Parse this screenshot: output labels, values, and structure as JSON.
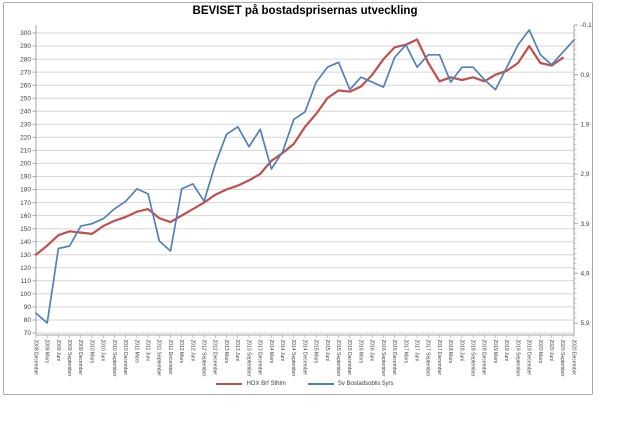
{
  "chart_data": {
    "type": "line",
    "title": "BEVISET på bostadsprisernas utveckling",
    "legend_position": "bottom",
    "grid": "horizontal-only",
    "categories": [
      "2008 December",
      "2009 Mars",
      "2009 Juni",
      "2009 September",
      "2009 December",
      "2010 Mars",
      "2010 Juni",
      "2010 September",
      "2010 December",
      "2011 Mars",
      "2011 Juni",
      "2011 September",
      "2011 December",
      "2012 Mars",
      "2012 Juni",
      "2012 September",
      "2012 December",
      "2013 Mars",
      "2013 Juni",
      "2013 September",
      "2013 December",
      "2014 Mars",
      "2014 Juni",
      "2014 September",
      "2014 December",
      "2015 Mars",
      "2015 Juni",
      "2015 September",
      "2015 December",
      "2016 Mars",
      "2016 Juni",
      "2016 September",
      "2016 December",
      "2017 Mars",
      "2017 Juni",
      "2017 September",
      "2017 December",
      "2018 Mars",
      "2018 Juni",
      "2018 September",
      "2018 December",
      "2019 Mars",
      "2019 Juni",
      "2019 September",
      "2019 December",
      "2020 Mars",
      "2020 Juni",
      "2020 September",
      "2020 December"
    ],
    "series": [
      {
        "name": "HOX Brf Sthlm",
        "color": "#C0504D",
        "axis": "left",
        "values": [
          130,
          137,
          145,
          148,
          147,
          146,
          152,
          156,
          159,
          163,
          165,
          158,
          155,
          160,
          165,
          170,
          176,
          180,
          183,
          187,
          192,
          202,
          208,
          215,
          228,
          238,
          250,
          256,
          255,
          259,
          268,
          280,
          289,
          291,
          295,
          277,
          263,
          266,
          264,
          266,
          263,
          268,
          271,
          277,
          290,
          277,
          275,
          281,
          null
        ]
      },
      {
        "name": "Sv Bostadsoblis 5yrs",
        "color": "#4F81BD",
        "axis": "right",
        "values": [
          5.7,
          5.9,
          4.4,
          4.35,
          3.95,
          3.9,
          3.8,
          3.6,
          3.45,
          3.2,
          3.3,
          4.25,
          4.45,
          3.2,
          3.1,
          3.45,
          2.7,
          2.1,
          1.95,
          2.35,
          2.0,
          2.8,
          2.45,
          1.8,
          1.65,
          1.05,
          0.75,
          0.65,
          1.2,
          0.95,
          1.05,
          1.15,
          0.55,
          0.3,
          0.75,
          0.5,
          0.5,
          1.05,
          0.75,
          0.75,
          1.0,
          1.2,
          0.75,
          0.3,
          0.0,
          0.5,
          0.7,
          0.45,
          0.2
        ]
      }
    ],
    "left_axis": {
      "min": 70,
      "max": 300,
      "step": 10,
      "labels": [
        "300",
        "290",
        "280",
        "270",
        "260",
        "250",
        "240",
        "230",
        "220",
        "210",
        "200",
        "190",
        "180",
        "170",
        "160",
        "150",
        "140",
        "130",
        "120",
        "110",
        "100",
        "90",
        "80",
        "70"
      ]
    },
    "right_axis": {
      "min": -0.1,
      "max": 5.9,
      "step": 1.0,
      "inverted_note": "negative at top, values increase downward",
      "labels": [
        "-0,1",
        "0,9",
        "1,9",
        "2,9",
        "3,9",
        "4,9",
        "5,9"
      ]
    },
    "colors": {
      "gridline": "#D6D6D6",
      "axis": "#A6A6A6",
      "tick_text": "#404040",
      "frame_border": "#ABABAB"
    }
  }
}
